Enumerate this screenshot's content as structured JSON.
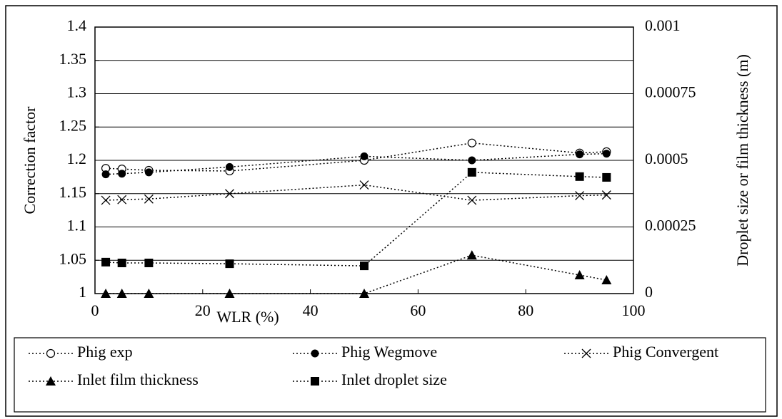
{
  "chart_data": {
    "type": "line",
    "xlabel": "WLR (%)",
    "ylabel": "Correction factor",
    "y2label": "Droplet size or film thickness (m)",
    "x": [
      2,
      5,
      10,
      25,
      50,
      70,
      90,
      95
    ],
    "xlim": [
      0,
      100
    ],
    "xticks": [
      0,
      20,
      40,
      60,
      80,
      100
    ],
    "ylim": [
      1,
      1.4
    ],
    "yticks": [
      1,
      1.05,
      1.1,
      1.15,
      1.2,
      1.25,
      1.3,
      1.35,
      1.4
    ],
    "y2lim": [
      0,
      0.001
    ],
    "y2ticks": [
      0,
      0.00025,
      0.0005,
      0.00075,
      0.001
    ],
    "grid": true,
    "legend": "bottom",
    "series": [
      {
        "name": "Phig exp",
        "color": "#000000",
        "marker": "open-circle",
        "values": [
          1.188,
          1.187,
          1.185,
          1.184,
          1.2,
          1.226,
          1.211,
          1.213
        ]
      },
      {
        "name": "Phig Wegmove",
        "color": "#000000",
        "marker": "filled-circle",
        "values": [
          1.179,
          1.18,
          1.182,
          1.19,
          1.206,
          1.2,
          1.209,
          1.21
        ]
      },
      {
        "name": "Phig Convergent",
        "color": "#000000",
        "marker": "cross",
        "values": [
          1.14,
          1.141,
          1.142,
          1.15,
          1.163,
          1.14,
          1.147,
          1.148
        ]
      },
      {
        "name": "Inlet film thickness",
        "color": "#000000",
        "marker": "triangle",
        "axis": "y2",
        "values": [
          0,
          0,
          0,
          0,
          0,
          0.000144,
          6.95e-05,
          5.08e-05
        ]
      },
      {
        "name": "Inlet droplet size",
        "color": "#000000",
        "marker": "square",
        "axis": "y2",
        "values": [
          0.000118,
          0.000115,
          0.000115,
          0.000112,
          0.000104,
          0.000455,
          0.000439,
          0.000436
        ]
      }
    ]
  }
}
